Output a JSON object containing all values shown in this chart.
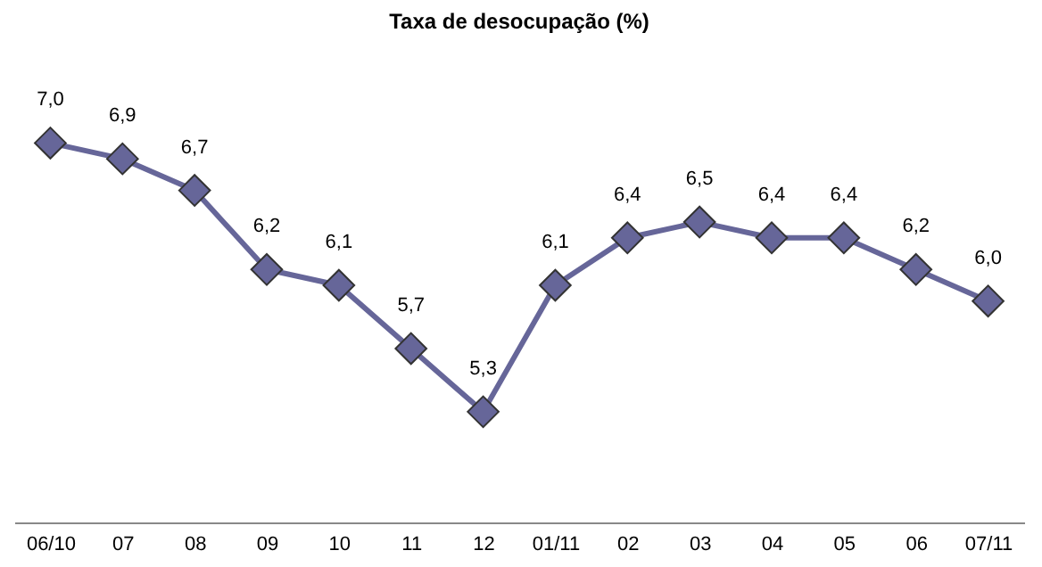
{
  "chart_data": {
    "type": "line",
    "title": "Taxa de desocupação (%)",
    "categories": [
      "06/10",
      "07",
      "08",
      "09",
      "10",
      "11",
      "12",
      "01/11",
      "02",
      "03",
      "04",
      "05",
      "06",
      "07/11"
    ],
    "series": [
      {
        "color": "#666699",
        "values": [
          7.0,
          6.9,
          6.7,
          6.2,
          6.1,
          5.7,
          5.3,
          6.1,
          6.4,
          6.5,
          6.4,
          6.4,
          6.2,
          6.0
        ],
        "value_labels": [
          "7,0",
          "6,9",
          "6,7",
          "6,2",
          "6,1",
          "5,7",
          "5,3",
          "6,1",
          "6,4",
          "6,5",
          "6,4",
          "6,4",
          "6,2",
          "6,0"
        ]
      }
    ],
    "marker": "diamond",
    "line_style": "solid"
  }
}
